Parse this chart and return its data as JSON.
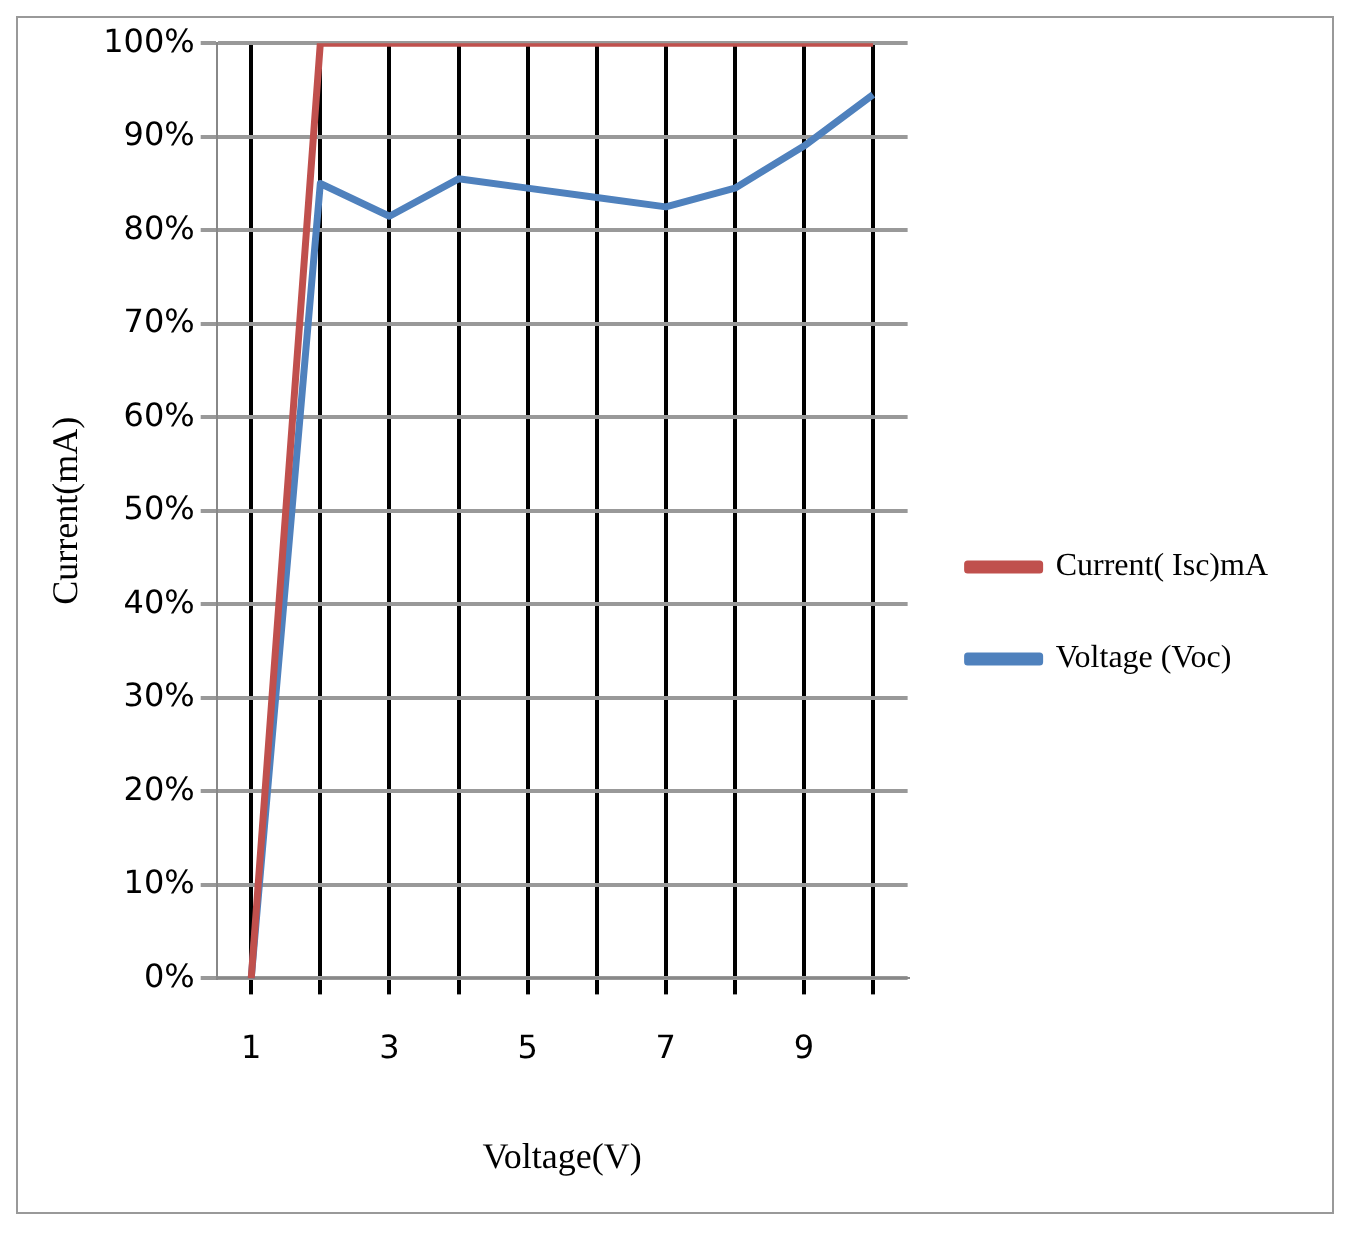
{
  "chart_data": {
    "type": "line",
    "xlabel": "Voltage(V)",
    "ylabel": "Current(mA)",
    "categories": [
      "1",
      null,
      "3",
      null,
      "5",
      null,
      "7",
      null,
      "9",
      null
    ],
    "series": [
      {
        "name": "Current( Isc)mA",
        "color": "#c0504d",
        "values": [
          0,
          100,
          100,
          100,
          100,
          100,
          100,
          100,
          100,
          100
        ]
      },
      {
        "name": "Voltage (Voc)",
        "color": "#4f81bd",
        "values": [
          0,
          85,
          81.5,
          85.5,
          84.5,
          83.5,
          82.5,
          84.5,
          89,
          94.5
        ]
      }
    ],
    "ylim": [
      0,
      100
    ],
    "yticks": [
      {
        "value": 0,
        "label": "0%"
      },
      {
        "value": 10,
        "label": "10%"
      },
      {
        "value": 20,
        "label": "20%"
      },
      {
        "value": 30,
        "label": "30%"
      },
      {
        "value": 40,
        "label": "40%"
      },
      {
        "value": 50,
        "label": "50%"
      },
      {
        "value": 60,
        "label": "60%"
      },
      {
        "value": 70,
        "label": "70%"
      },
      {
        "value": 80,
        "label": "80%"
      },
      {
        "value": 90,
        "label": "90%"
      },
      {
        "value": 100,
        "label": "100%"
      }
    ],
    "grid": true,
    "legend": "right",
    "marker": "none",
    "line_style": "solid"
  }
}
